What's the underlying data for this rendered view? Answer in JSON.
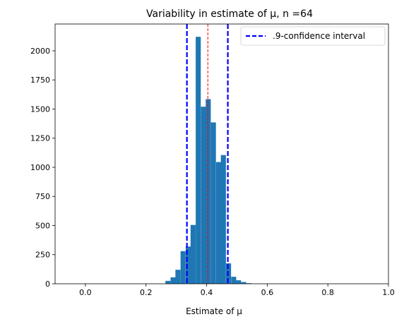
{
  "chart_data": {
    "type": "bar",
    "title": "Variability in estimate of μ, n =64",
    "xlabel": "Estimate of μ",
    "ylabel": "",
    "xlim": [
      -0.1,
      1.0
    ],
    "ylim": [
      0,
      2230
    ],
    "xticks": [
      0.0,
      0.2,
      0.4,
      0.6,
      0.8,
      1.0
    ],
    "xtick_labels": [
      "0.0",
      "0.2",
      "0.4",
      "0.6",
      "0.8",
      "1.0"
    ],
    "yticks": [
      0,
      250,
      500,
      750,
      1000,
      1250,
      1500,
      1750,
      2000
    ],
    "ytick_labels": [
      "0",
      "250",
      "500",
      "750",
      "1000",
      "1250",
      "1500",
      "1750",
      "2000"
    ],
    "bin_width": 0.01667,
    "bins": [
      {
        "left": 0.264,
        "count": 25
      },
      {
        "left": 0.281,
        "count": 55
      },
      {
        "left": 0.297,
        "count": 120
      },
      {
        "left": 0.314,
        "count": 280
      },
      {
        "left": 0.331,
        "count": 320
      },
      {
        "left": 0.347,
        "count": 505
      },
      {
        "left": 0.364,
        "count": 2120
      },
      {
        "left": 0.381,
        "count": 1520
      },
      {
        "left": 0.397,
        "count": 1585
      },
      {
        "left": 0.414,
        "count": 1385
      },
      {
        "left": 0.431,
        "count": 1045
      },
      {
        "left": 0.447,
        "count": 1105
      },
      {
        "left": 0.464,
        "count": 175
      },
      {
        "left": 0.481,
        "count": 60
      },
      {
        "left": 0.497,
        "count": 30
      },
      {
        "left": 0.514,
        "count": 15
      },
      {
        "left": 0.531,
        "count": 5
      }
    ],
    "ci_lower": 0.335,
    "ci_upper": 0.47,
    "mean_line": 0.404,
    "legend": {
      "placement": "top-right",
      "entries": [
        {
          "label": ".9-confidence interval"
        }
      ]
    },
    "grid": false,
    "colors": {
      "bars": "#1f77b4",
      "ci": "#0000ff",
      "mean": "#ff0000"
    }
  }
}
